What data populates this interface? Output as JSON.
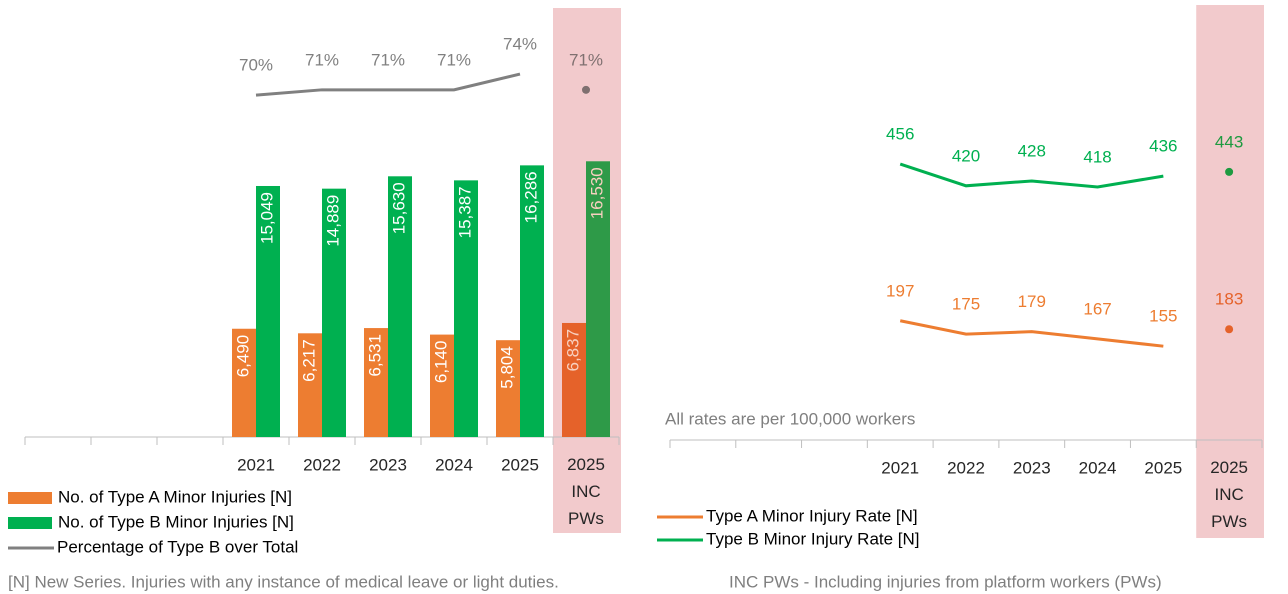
{
  "chart_data": [
    {
      "type": "bar",
      "categories": [
        null,
        null,
        null,
        "2021",
        "2022",
        "2023",
        "2024",
        "2025",
        "2025 INC PWs"
      ],
      "ylim": [
        0,
        26200
      ],
      "y2lim": [
        4.9,
        88.1
      ],
      "highlight_color": "#f2cacc",
      "series": [
        {
          "name": "No. of Type A Minor Injuries [N]",
          "color": "#ed7d31",
          "highlight_color": "#e5622a",
          "values": [
            null,
            null,
            null,
            6490,
            6217,
            6531,
            6140,
            5804,
            6837
          ],
          "value_labels": [
            null,
            null,
            null,
            "6,490",
            "6,217",
            "6,531",
            "6,140",
            "5,804",
            "6,837"
          ]
        },
        {
          "name": "No. of Type B Minor Injuries [N]",
          "color": "#00b050",
          "highlight_color": "#2e9a48",
          "values": [
            null,
            null,
            null,
            15049,
            14889,
            15630,
            15387,
            16286,
            16530
          ],
          "value_labels": [
            null,
            null,
            null,
            "15,049",
            "14,889",
            "15,630",
            "15,387",
            "16,286",
            "16,530"
          ]
        },
        {
          "name": "Percentage of Type B over Total",
          "color": "#808080",
          "highlight_color": "#7f7070",
          "axis": "y2",
          "type": "line",
          "values": [
            null,
            null,
            null,
            70,
            71,
            71,
            71,
            74,
            71
          ],
          "value_labels": [
            null,
            null,
            null,
            "70%",
            "71%",
            "71%",
            "71%",
            "74%",
            "71%"
          ]
        }
      ]
    },
    {
      "type": "line",
      "categories": [
        null,
        null,
        null,
        "2021",
        "2022",
        "2023",
        "2024",
        "2025",
        "2025 INC PWs"
      ],
      "ylim": [
        0,
        727
      ],
      "highlight_color": "#f2cacc",
      "note": "All rates are per 100,000 workers",
      "series": [
        {
          "name": "Type A Minor Injury Rate [N]",
          "color": "#ed7d31",
          "highlight_color": "#e5622a",
          "values": [
            null,
            null,
            null,
            197,
            175,
            179,
            167,
            155,
            183
          ]
        },
        {
          "name": "Type B Minor Injury Rate [N]",
          "color": "#00b050",
          "highlight_color": "#1e9a40",
          "values": [
            null,
            null,
            null,
            456,
            420,
            428,
            418,
            436,
            443
          ]
        }
      ]
    }
  ],
  "footnotes": [
    "[N] New Series. Injuries with any instance of medical leave or light duties.",
    "INC PWs - Including injuries from platform workers (PWs)"
  ]
}
